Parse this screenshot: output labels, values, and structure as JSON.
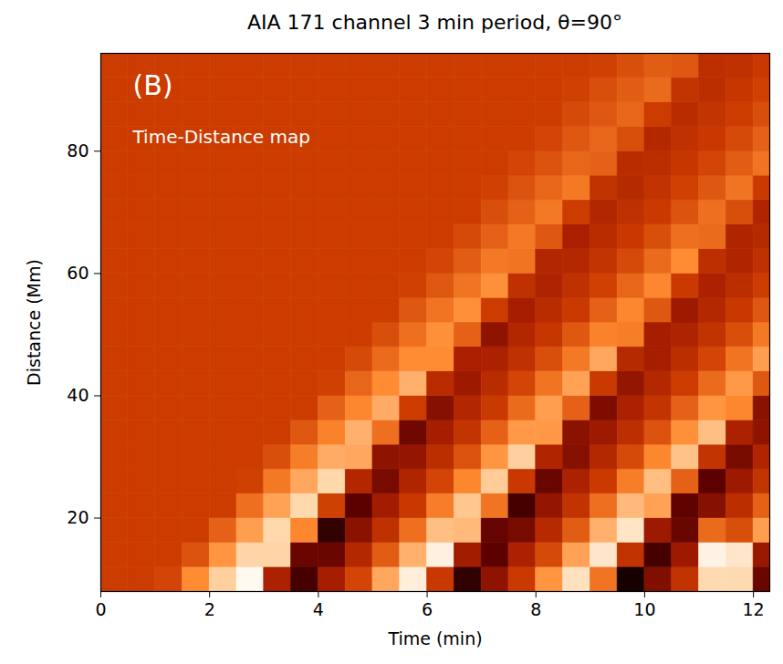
{
  "chart_data": {
    "type": "heatmap",
    "title": "AIA 171 channel 3 min period, θ=90°",
    "panel_label": "(B)",
    "annotation": "Time-Distance map",
    "x_label": "Time (min)",
    "y_label": "Distance (Mm)",
    "xlim": [
      0,
      12.3
    ],
    "ylim": [
      8,
      96
    ],
    "xticks": [
      0,
      2,
      4,
      6,
      8,
      10,
      12
    ],
    "yticks": [
      20,
      40,
      60,
      80
    ],
    "color_range": [
      0,
      1
    ],
    "x_edges": [
      0,
      0.5,
      1,
      1.5,
      2,
      2.5,
      3,
      3.5,
      4,
      4.5,
      5,
      5.5,
      6,
      6.5,
      7,
      7.5,
      8,
      8.5,
      9,
      9.5,
      10,
      10.5,
      11,
      11.5,
      12,
      12.5
    ],
    "y_edges": [
      8,
      12,
      16,
      20,
      24,
      28,
      32,
      36,
      40,
      44,
      48,
      52,
      56,
      60,
      64,
      68,
      72,
      76,
      80,
      84,
      88,
      92,
      96
    ],
    "cells": [
      [
        0.5,
        0.5,
        0.52,
        0.67,
        0.82,
        0.97,
        0.35,
        0.13,
        0.33,
        0.52,
        0.73,
        0.93,
        0.48,
        0.09,
        0.28,
        0.49,
        0.69,
        0.88,
        0.62,
        0.04,
        0.25,
        0.45,
        0.85,
        0.85,
        0.2
      ],
      [
        0.5,
        0.5,
        0.5,
        0.55,
        0.69,
        0.83,
        0.83,
        0.2,
        0.2,
        0.39,
        0.57,
        0.75,
        0.94,
        0.32,
        0.17,
        0.35,
        0.53,
        0.72,
        0.9,
        0.45,
        0.13,
        0.31,
        0.95,
        0.9,
        0.3
      ],
      [
        0.5,
        0.5,
        0.5,
        0.5,
        0.58,
        0.71,
        0.84,
        0.66,
        0.09,
        0.27,
        0.44,
        0.61,
        0.78,
        0.77,
        0.19,
        0.23,
        0.4,
        0.57,
        0.75,
        0.89,
        0.31,
        0.2,
        0.6,
        0.54,
        0.71
      ],
      [
        0.5,
        0.5,
        0.5,
        0.5,
        0.5,
        0.61,
        0.72,
        0.84,
        0.51,
        0.17,
        0.32,
        0.48,
        0.64,
        0.8,
        0.62,
        0.13,
        0.29,
        0.45,
        0.61,
        0.77,
        0.72,
        0.18,
        0.26,
        0.42,
        0.58
      ],
      [
        0.5,
        0.5,
        0.5,
        0.5,
        0.5,
        0.51,
        0.63,
        0.73,
        0.84,
        0.38,
        0.23,
        0.37,
        0.52,
        0.66,
        0.81,
        0.48,
        0.2,
        0.35,
        0.49,
        0.64,
        0.78,
        0.58,
        0.17,
        0.31,
        0.46
      ],
      [
        0.5,
        0.5,
        0.5,
        0.5,
        0.5,
        0.5,
        0.54,
        0.64,
        0.74,
        0.73,
        0.28,
        0.29,
        0.42,
        0.55,
        0.69,
        0.82,
        0.37,
        0.26,
        0.39,
        0.53,
        0.66,
        0.79,
        0.46,
        0.23,
        0.37
      ],
      [
        0.5,
        0.5,
        0.5,
        0.5,
        0.5,
        0.5,
        0.5,
        0.56,
        0.65,
        0.75,
        0.61,
        0.21,
        0.33,
        0.46,
        0.58,
        0.7,
        0.7,
        0.27,
        0.31,
        0.43,
        0.55,
        0.68,
        0.78,
        0.35,
        0.28
      ],
      [
        0.5,
        0.5,
        0.5,
        0.5,
        0.5,
        0.5,
        0.5,
        0.5,
        0.58,
        0.66,
        0.74,
        0.5,
        0.26,
        0.38,
        0.49,
        0.6,
        0.71,
        0.58,
        0.24,
        0.35,
        0.46,
        0.58,
        0.69,
        0.66,
        0.27
      ],
      [
        0.5,
        0.5,
        0.5,
        0.5,
        0.5,
        0.5,
        0.5,
        0.5,
        0.51,
        0.59,
        0.67,
        0.75,
        0.41,
        0.31,
        0.41,
        0.52,
        0.62,
        0.72,
        0.49,
        0.29,
        0.39,
        0.5,
        0.6,
        0.7,
        0.56
      ],
      [
        0.5,
        0.5,
        0.5,
        0.5,
        0.5,
        0.5,
        0.5,
        0.5,
        0.5,
        0.53,
        0.6,
        0.67,
        0.67,
        0.34,
        0.35,
        0.44,
        0.54,
        0.63,
        0.73,
        0.4,
        0.33,
        0.42,
        0.52,
        0.62,
        0.71
      ],
      [
        0.5,
        0.5,
        0.5,
        0.5,
        0.5,
        0.5,
        0.5,
        0.5,
        0.5,
        0.5,
        0.54,
        0.61,
        0.68,
        0.58,
        0.28,
        0.38,
        0.47,
        0.56,
        0.65,
        0.64,
        0.33,
        0.36,
        0.45,
        0.54,
        0.63
      ],
      [
        0.5,
        0.5,
        0.5,
        0.5,
        0.5,
        0.5,
        0.5,
        0.5,
        0.5,
        0.5,
        0.5,
        0.56,
        0.62,
        0.68,
        0.5,
        0.33,
        0.41,
        0.49,
        0.58,
        0.66,
        0.56,
        0.31,
        0.39,
        0.48,
        0.56
      ],
      [
        0.5,
        0.5,
        0.5,
        0.5,
        0.5,
        0.5,
        0.5,
        0.5,
        0.5,
        0.5,
        0.5,
        0.51,
        0.56,
        0.62,
        0.68,
        0.44,
        0.36,
        0.44,
        0.51,
        0.59,
        0.66,
        0.49,
        0.35,
        0.42,
        0.5
      ],
      [
        0.5,
        0.5,
        0.5,
        0.5,
        0.5,
        0.5,
        0.5,
        0.5,
        0.5,
        0.5,
        0.5,
        0.5,
        0.52,
        0.57,
        0.63,
        0.62,
        0.38,
        0.39,
        0.46,
        0.53,
        0.6,
        0.67,
        0.43,
        0.37,
        0.44
      ],
      [
        0.5,
        0.5,
        0.5,
        0.5,
        0.5,
        0.5,
        0.5,
        0.5,
        0.5,
        0.5,
        0.5,
        0.5,
        0.5,
        0.53,
        0.58,
        0.63,
        0.56,
        0.34,
        0.41,
        0.48,
        0.54,
        0.61,
        0.6,
        0.37,
        0.4
      ],
      [
        0.5,
        0.5,
        0.5,
        0.5,
        0.5,
        0.5,
        0.5,
        0.5,
        0.5,
        0.5,
        0.5,
        0.5,
        0.5,
        0.5,
        0.54,
        0.58,
        0.63,
        0.5,
        0.38,
        0.44,
        0.49,
        0.55,
        0.61,
        0.54,
        0.37
      ],
      [
        0.5,
        0.5,
        0.5,
        0.5,
        0.5,
        0.5,
        0.5,
        0.5,
        0.5,
        0.5,
        0.5,
        0.5,
        0.5,
        0.5,
        0.51,
        0.55,
        0.59,
        0.63,
        0.45,
        0.4,
        0.45,
        0.51,
        0.56,
        0.62,
        0.49
      ],
      [
        0.5,
        0.5,
        0.5,
        0.5,
        0.5,
        0.5,
        0.5,
        0.5,
        0.5,
        0.5,
        0.5,
        0.5,
        0.5,
        0.5,
        0.5,
        0.52,
        0.55,
        0.59,
        0.58,
        0.41,
        0.42,
        0.47,
        0.52,
        0.57,
        0.62
      ],
      [
        0.5,
        0.5,
        0.5,
        0.5,
        0.5,
        0.5,
        0.5,
        0.5,
        0.5,
        0.5,
        0.5,
        0.5,
        0.5,
        0.5,
        0.5,
        0.5,
        0.52,
        0.56,
        0.59,
        0.54,
        0.39,
        0.44,
        0.48,
        0.53,
        0.58
      ],
      [
        0.5,
        0.5,
        0.5,
        0.5,
        0.5,
        0.5,
        0.5,
        0.5,
        0.5,
        0.5,
        0.5,
        0.5,
        0.5,
        0.5,
        0.5,
        0.5,
        0.5,
        0.53,
        0.56,
        0.59,
        0.5,
        0.41,
        0.46,
        0.5,
        0.54
      ],
      [
        0.5,
        0.5,
        0.5,
        0.5,
        0.5,
        0.5,
        0.5,
        0.5,
        0.5,
        0.5,
        0.5,
        0.5,
        0.5,
        0.5,
        0.5,
        0.5,
        0.5,
        0.51,
        0.54,
        0.57,
        0.6,
        0.46,
        0.42,
        0.47,
        0.51
      ],
      [
        0.5,
        0.5,
        0.5,
        0.5,
        0.5,
        0.5,
        0.5,
        0.5,
        0.5,
        0.5,
        0.5,
        0.5,
        0.5,
        0.5,
        0.5,
        0.5,
        0.5,
        0.5,
        0.51,
        0.54,
        0.57,
        0.56,
        0.43,
        0.44,
        0.48
      ]
    ]
  }
}
